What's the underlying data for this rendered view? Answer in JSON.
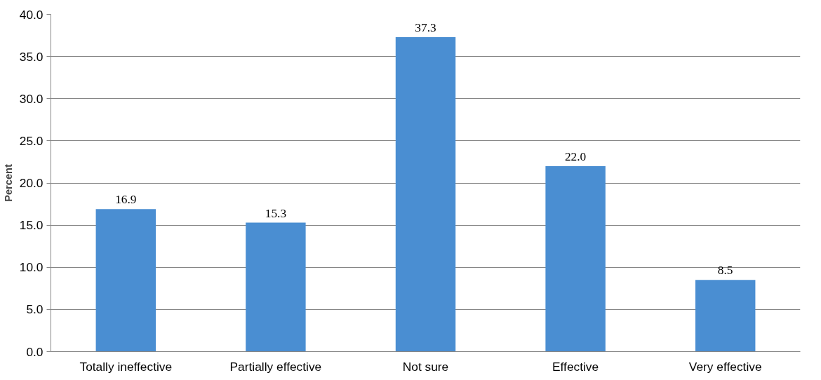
{
  "chart_data": {
    "type": "bar",
    "ylabel": "Percent",
    "categories": [
      "Totally ineffective",
      "Partially effective",
      "Not sure",
      "Effective",
      "Very effective"
    ],
    "values": [
      16.9,
      15.3,
      37.3,
      22.0,
      8.5
    ],
    "value_labels": [
      "16.9",
      "15.3",
      "37.3",
      "22.0",
      "8.5"
    ],
    "color": "#4a8ed2",
    "ylim": [
      0,
      40
    ],
    "yticks": [
      {
        "value": 0,
        "label": "0.0"
      },
      {
        "value": 5,
        "label": "5.0"
      },
      {
        "value": 10,
        "label": "10.0"
      },
      {
        "value": 15,
        "label": "15.0"
      },
      {
        "value": 20,
        "label": "20.0"
      },
      {
        "value": 25,
        "label": "25.0"
      },
      {
        "value": 30,
        "label": "30.0"
      },
      {
        "value": 35,
        "label": "35.0"
      },
      {
        "value": 40,
        "label": "40.0"
      }
    ],
    "grid": "y"
  }
}
